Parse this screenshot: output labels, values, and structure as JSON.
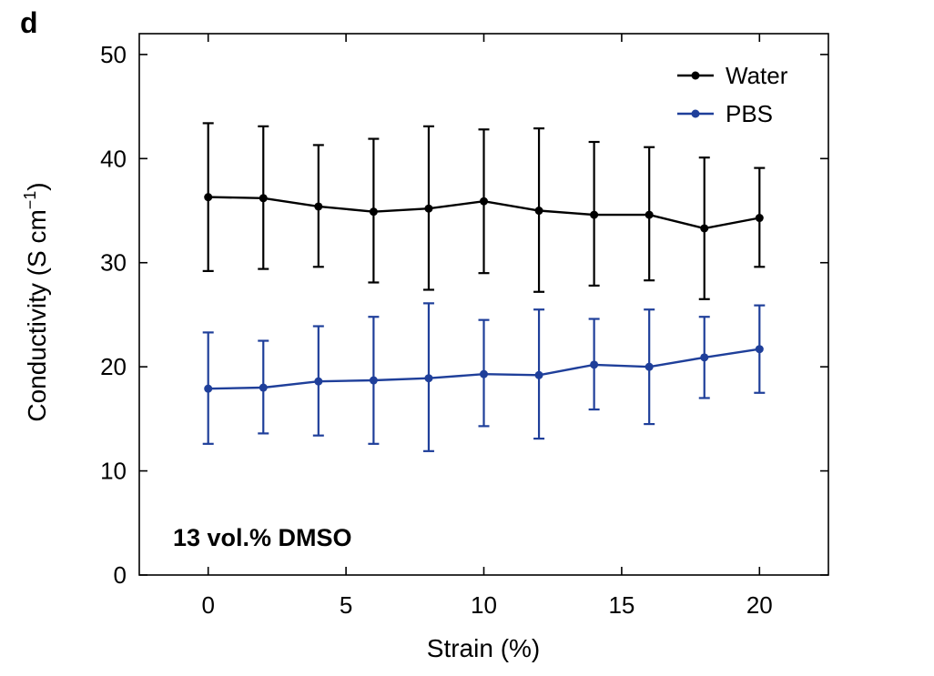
{
  "panel_label": "d",
  "annotation": "13 vol.% DMSO",
  "colors": {
    "water": "#000000",
    "pbs": "#1f3f9a"
  },
  "chart_data": {
    "type": "line",
    "xlabel": "Strain (%)",
    "ylabel_main": "Conductivity (S cm",
    "ylabel_sup": "−1",
    "ylabel_close": ")",
    "xlim": [
      -2.5,
      22.5
    ],
    "ylim": [
      0,
      52
    ],
    "xticks": [
      0,
      5,
      10,
      15,
      20
    ],
    "yticks": [
      0,
      10,
      20,
      30,
      40,
      50
    ],
    "x": [
      0,
      2,
      4,
      6,
      8,
      10,
      12,
      14,
      16,
      18,
      20
    ],
    "legend_position": "top-right",
    "grid": false,
    "series": [
      {
        "name": "Water",
        "color": "#000000",
        "values": [
          36.3,
          36.2,
          35.4,
          34.9,
          35.2,
          35.9,
          35.0,
          34.6,
          34.6,
          33.3,
          34.3
        ],
        "err_upper": [
          43.4,
          43.1,
          41.3,
          41.9,
          43.1,
          42.8,
          42.9,
          41.6,
          41.1,
          40.1,
          39.1
        ],
        "err_lower": [
          29.2,
          29.4,
          29.6,
          28.1,
          27.4,
          29.0,
          27.2,
          27.8,
          28.3,
          26.5,
          29.6
        ]
      },
      {
        "name": "PBS",
        "color": "#1f3f9a",
        "values": [
          17.9,
          18.0,
          18.6,
          18.7,
          18.9,
          19.3,
          19.2,
          20.2,
          20.0,
          20.9,
          21.7
        ],
        "err_upper": [
          23.3,
          22.5,
          23.9,
          24.8,
          26.1,
          24.5,
          25.5,
          24.6,
          25.5,
          24.8,
          25.9
        ],
        "err_lower": [
          12.6,
          13.6,
          13.4,
          12.6,
          11.9,
          14.3,
          13.1,
          15.9,
          14.5,
          17.0,
          17.5
        ]
      }
    ]
  }
}
